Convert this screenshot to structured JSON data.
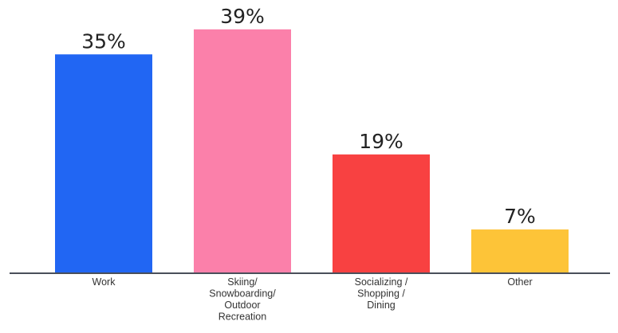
{
  "chart_data": {
    "type": "bar",
    "categories": [
      [
        "Work"
      ],
      [
        "Skiing/",
        "Snowboarding/",
        "Outdoor",
        "Recreation"
      ],
      [
        "Socializing /",
        "Shopping /",
        "Dining"
      ],
      [
        "Other"
      ]
    ],
    "values": [
      35,
      39,
      19,
      7
    ],
    "data_labels": [
      "35%",
      "39%",
      "19%",
      "7%"
    ],
    "bar_colors": [
      "#2166f3",
      "#fb80aa",
      "#f84141",
      "#fdc438"
    ],
    "axis_color": "#4a4f5a",
    "ylim": [
      0,
      40
    ],
    "grid": false,
    "legend": "none",
    "title": "",
    "xlabel": "",
    "ylabel": ""
  }
}
